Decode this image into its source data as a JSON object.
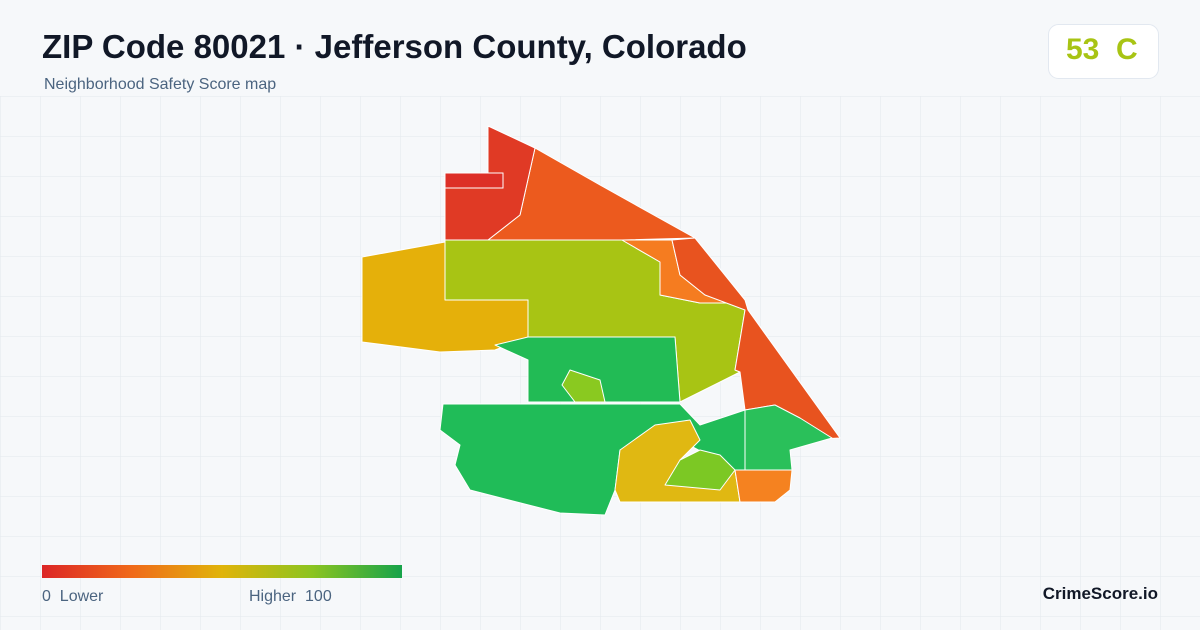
{
  "header": {
    "title": "ZIP Code 80021 · Jefferson County, Colorado",
    "subtitle": "Neighborhood Safety Score map"
  },
  "score": {
    "value": "53",
    "grade": "C"
  },
  "legend": {
    "min": "0",
    "min_label": "Lower",
    "max_label": "Higher",
    "max": "100"
  },
  "brand": "CrimeScore.io"
}
